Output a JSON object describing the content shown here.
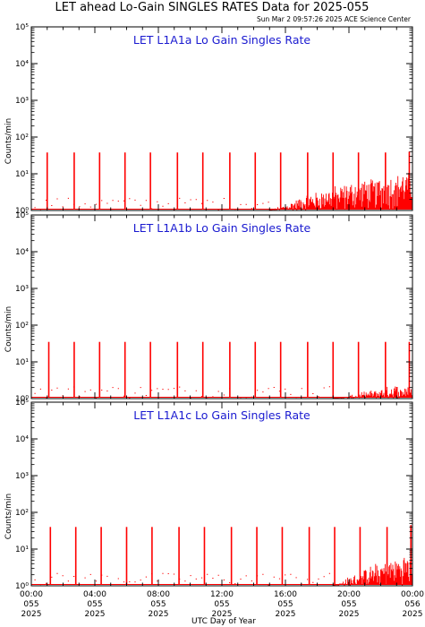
{
  "header": {
    "title": "LET ahead Lo-Gain SINGLES RATES Data for 2025-055",
    "timestamp": "Sun Mar  2 09:57:26 2025 ACE Science Center"
  },
  "colors": {
    "series": "#ff0000",
    "panel_title": "#1a1ad0",
    "axes": "#000000"
  },
  "chart_data": [
    {
      "type": "line",
      "title": "LET L1A1a Lo Gain Singles Rate",
      "xlabel": "",
      "ylabel": "Counts/min",
      "yscale": "log",
      "ylim": [
        1,
        100000
      ],
      "xlim": [
        0,
        24
      ],
      "yticks": [
        "10⁰",
        "10¹",
        "10²",
        "10³",
        "10⁴",
        "10⁵"
      ],
      "grid": false,
      "series": [
        {
          "spikes_x": [
            1.0,
            2.7,
            4.3,
            5.9,
            7.5,
            9.2,
            10.8,
            12.5,
            14.1,
            15.7,
            17.4,
            19.0,
            20.6,
            22.3,
            23.8
          ],
          "spikes_y": [
            38,
            38,
            38,
            38,
            38,
            38,
            38,
            38,
            38,
            38,
            38,
            38,
            38,
            38,
            40
          ],
          "baseline_y": 1,
          "noise_start_x": 15.0,
          "noise_level_end": 12
        }
      ]
    },
    {
      "type": "line",
      "title": "LET L1A1b Lo Gain Singles Rate",
      "xlabel": "",
      "ylabel": "Counts/min",
      "yscale": "log",
      "ylim": [
        1,
        100000
      ],
      "xlim": [
        0,
        24
      ],
      "yticks": [
        "10⁰",
        "10¹",
        "10²",
        "10³",
        "10⁴",
        "10⁵"
      ],
      "grid": false,
      "series": [
        {
          "spikes_x": [
            1.1,
            2.7,
            4.3,
            5.9,
            7.5,
            9.2,
            10.8,
            12.5,
            14.1,
            15.7,
            17.4,
            19.0,
            20.6,
            22.3,
            23.8
          ],
          "spikes_y": [
            35,
            35,
            35,
            35,
            35,
            35,
            35,
            35,
            35,
            35,
            35,
            35,
            35,
            35,
            35
          ],
          "baseline_y": 1,
          "noise_start_x": 19.0,
          "noise_level_end": 3
        }
      ]
    },
    {
      "type": "line",
      "title": "LET L1A1c Lo Gain Singles Rate",
      "xlabel": "UTC Day of Year",
      "ylabel": "Counts/min",
      "yscale": "log",
      "ylim": [
        1,
        100000
      ],
      "xlim": [
        0,
        24
      ],
      "yticks": [
        "10⁰",
        "10¹",
        "10²",
        "10³",
        "10⁴",
        "10⁵"
      ],
      "xticks": [
        {
          "time": "00:00",
          "doy": "055",
          "year": "2025"
        },
        {
          "time": "04:00",
          "doy": "055",
          "year": "2025"
        },
        {
          "time": "08:00",
          "doy": "055",
          "year": "2025"
        },
        {
          "time": "12:00",
          "doy": "055",
          "year": "2025"
        },
        {
          "time": "16:00",
          "doy": "055",
          "year": "2025"
        },
        {
          "time": "20:00",
          "doy": "055",
          "year": "2025"
        },
        {
          "time": "00:00",
          "doy": "056",
          "year": "2025"
        }
      ],
      "grid": false,
      "series": [
        {
          "spikes_x": [
            1.2,
            2.8,
            4.4,
            6.0,
            7.6,
            9.3,
            10.9,
            12.6,
            14.2,
            15.8,
            17.5,
            19.1,
            20.7,
            22.4,
            23.9
          ],
          "spikes_y": [
            40,
            40,
            40,
            40,
            40,
            40,
            40,
            40,
            40,
            40,
            40,
            40,
            40,
            40,
            45
          ],
          "baseline_y": 1,
          "noise_start_x": 19.0,
          "noise_level_end": 8
        }
      ]
    }
  ]
}
